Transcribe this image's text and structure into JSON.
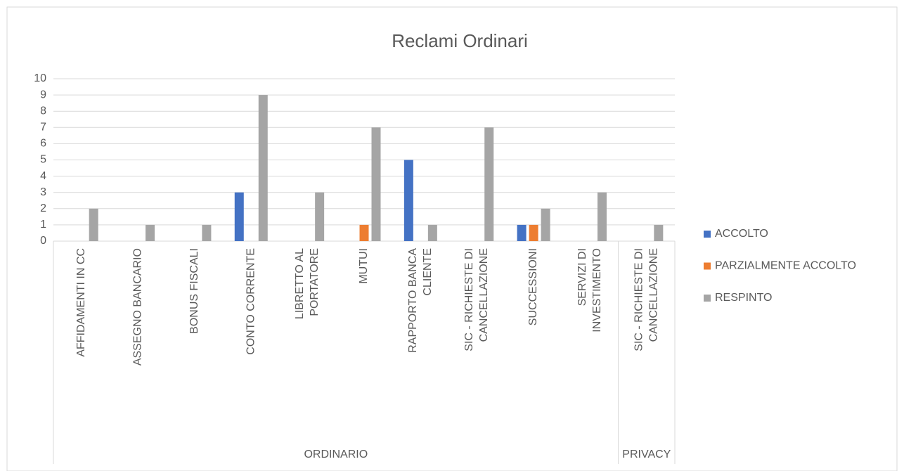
{
  "chart_data": {
    "type": "bar",
    "title": "Reclami Ordinari",
    "groups": [
      {
        "name": "ORDINARIO",
        "categories": [
          "AFFIDAMENTI IN CC",
          "ASSEGNO BANCARIO",
          "BONUS FISCALI",
          "CONTO CORRENTE",
          "LIBRETTO AL PORTATORE",
          "MUTUI",
          "RAPPORTO BANCA CLIENTE",
          "SIC - RICHIESTE DI CANCELLAZIONE",
          "SUCCESSIONI",
          "SERVIZI DI INVESTIMENTO"
        ]
      },
      {
        "name": "PRIVACY",
        "categories": [
          "SIC - RICHIESTE DI CANCELLAZIONE"
        ]
      }
    ],
    "series": [
      {
        "name": "ACCOLTO",
        "color": "#4472c4",
        "values": [
          null,
          null,
          null,
          3,
          null,
          null,
          5,
          null,
          1,
          null,
          null
        ]
      },
      {
        "name": "PARZIALMENTE ACCOLTO",
        "color": "#ed7d31",
        "values": [
          null,
          null,
          null,
          null,
          null,
          1,
          null,
          null,
          1,
          null,
          null
        ]
      },
      {
        "name": "RESPINTO",
        "color": "#a5a5a5",
        "values": [
          2,
          1,
          1,
          9,
          3,
          7,
          1,
          7,
          2,
          3,
          1
        ]
      }
    ],
    "ylim": [
      0,
      10
    ],
    "yticks": [
      0,
      1,
      2,
      3,
      4,
      5,
      6,
      7,
      8,
      9,
      10
    ],
    "grid": true,
    "legend": "right"
  }
}
